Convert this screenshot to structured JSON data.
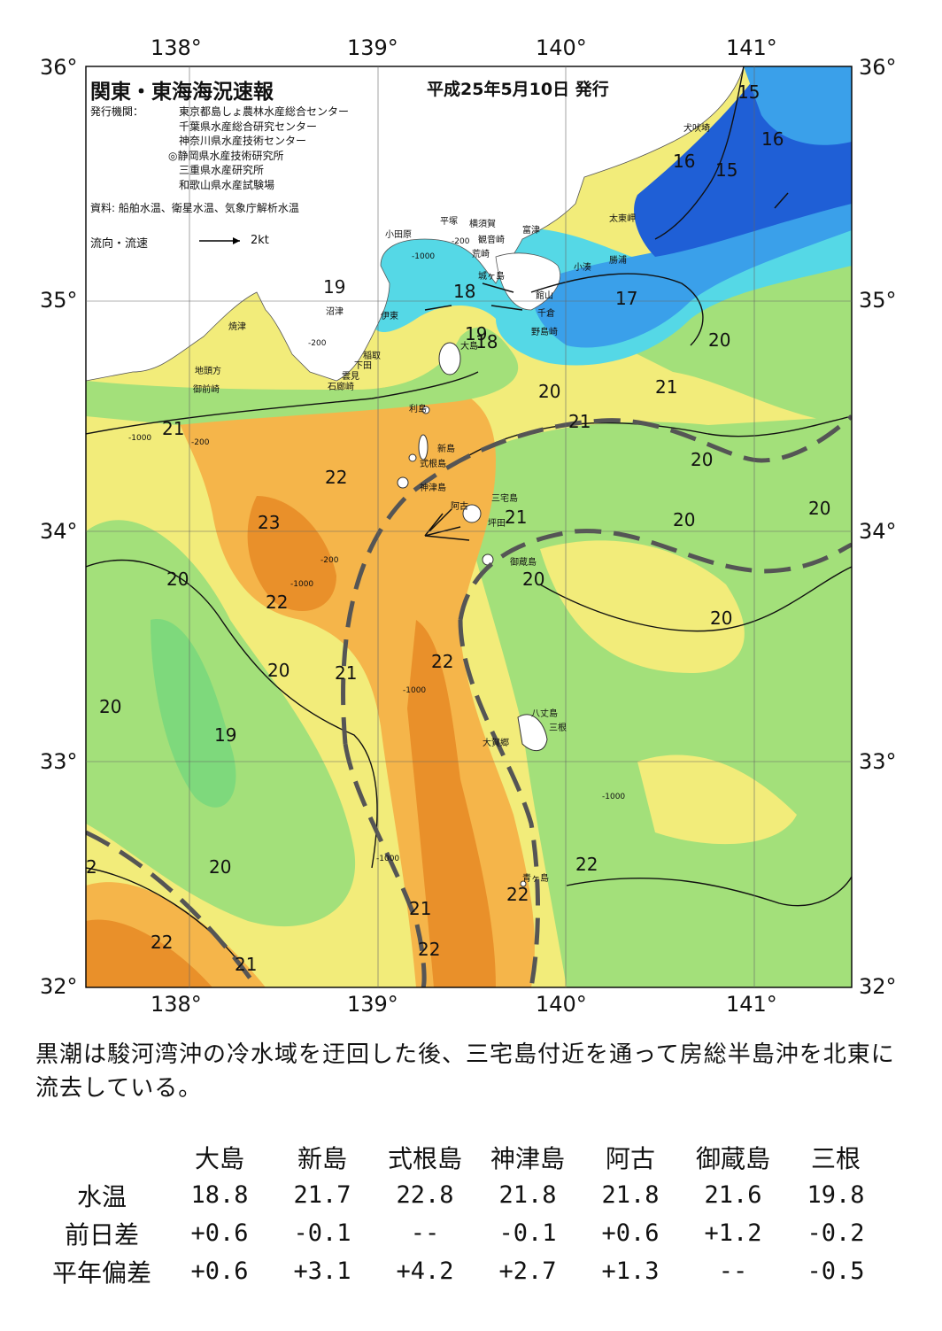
{
  "map": {
    "title": "関東・東海海況速報",
    "issue_date": "平成25年5月10日 発行",
    "issuer_label": "発行機関：",
    "issuers": [
      "東京都島しょ農林水産総合センター",
      "千葉県水産総合研究センター",
      "神奈川県水産技術センター",
      "◎静岡県水産技術研究所",
      "三重県水産研究所",
      "和歌山県水産試験場"
    ],
    "source": "資料: 船舶水温、衛星水温、気象庁解析水温",
    "flow_label": "流向・流速",
    "flow_scale": "2kt",
    "lon_labels": [
      "138°",
      "139°",
      "140°",
      "141°"
    ],
    "lat_labels": [
      "36°",
      "35°",
      "34°",
      "33°",
      "32°"
    ],
    "places": {
      "inubouzaki": "犬吠埼",
      "taitozaki": "太東岬",
      "katsuura": "勝浦",
      "kominato": "小湊",
      "tateyama": "館山",
      "chikura": "千倉",
      "nojimazaki": "野島崎",
      "futtsu": "富津",
      "kannonzaki": "観音崎",
      "yokosuka": "横須賀",
      "hiratsuka": "平塚",
      "odawara": "小田原",
      "arasaki": "荒崎",
      "jogashima": "城ヶ島",
      "numazu": "沼津",
      "ito": "伊東",
      "inatori": "稲取",
      "shimoda": "下田",
      "kumomi": "雲見",
      "irozaki": "石廊崎",
      "yaizu": "焼津",
      "jitougata": "地頭方",
      "omaezaki": "御前崎",
      "oshima": "大島",
      "toshima": "利島",
      "niijima": "新島",
      "shikinejima": "式根島",
      "kozushima": "神津島",
      "miyakejima": "三宅島",
      "ako": "阿古",
      "tsubota": "坪田",
      "mikurajima": "御蔵島",
      "hachijojima": "八丈島",
      "mitsune": "三根",
      "okago": "大賀郷",
      "aogashima": "青ヶ島"
    },
    "isotherm_labels": [
      "15",
      "16",
      "16",
      "15",
      "17",
      "19",
      "18",
      "18",
      "19",
      "20",
      "20",
      "21",
      "21",
      "20",
      "21",
      "22",
      "23",
      "22",
      "20",
      "20",
      "21",
      "22",
      "20",
      "20",
      "19",
      "20",
      "20",
      "20",
      "20",
      "21",
      "22",
      "22",
      "22",
      "21",
      "22",
      "2",
      "21"
    ],
    "depth_labels": [
      "-200",
      "-1000",
      "-200",
      "-1000",
      "-200",
      "-1000",
      "-200",
      "-1000",
      "-1000",
      "-1000"
    ]
  },
  "summary": "黒潮は駿河湾沖の冷水域を迂回した後、三宅島付近を通って房総半島沖を北東に流去している。",
  "stats": {
    "columns": [
      "大島",
      "新島",
      "式根島",
      "神津島",
      "阿古",
      "御蔵島",
      "三根"
    ],
    "rows": [
      {
        "label": "水温",
        "values": [
          "18.8",
          "21.7",
          "22.8",
          "21.8",
          "21.8",
          "21.6",
          "19.8"
        ]
      },
      {
        "label": "前日差",
        "values": [
          "+0.6",
          "-0.1",
          "--",
          "-0.1",
          "+0.6",
          "+1.2",
          "-0.2"
        ]
      },
      {
        "label": "平年偏差",
        "values": [
          "+0.6",
          "+3.1",
          "+4.2",
          "+2.7",
          "+1.3",
          "--",
          "-0.5"
        ]
      }
    ]
  },
  "colors": {
    "sst_15": "#1f5fd6",
    "sst_17": "#3aa0ea",
    "sst_18": "#55d8e6",
    "sst_19": "#7ed97c",
    "sst_20": "#a3e07a",
    "sst_21": "#f2ec7a",
    "sst_22": "#f5b54a",
    "sst_23": "#e9902a",
    "kuroshio_axis": "#555555",
    "land": "#ffffff"
  }
}
